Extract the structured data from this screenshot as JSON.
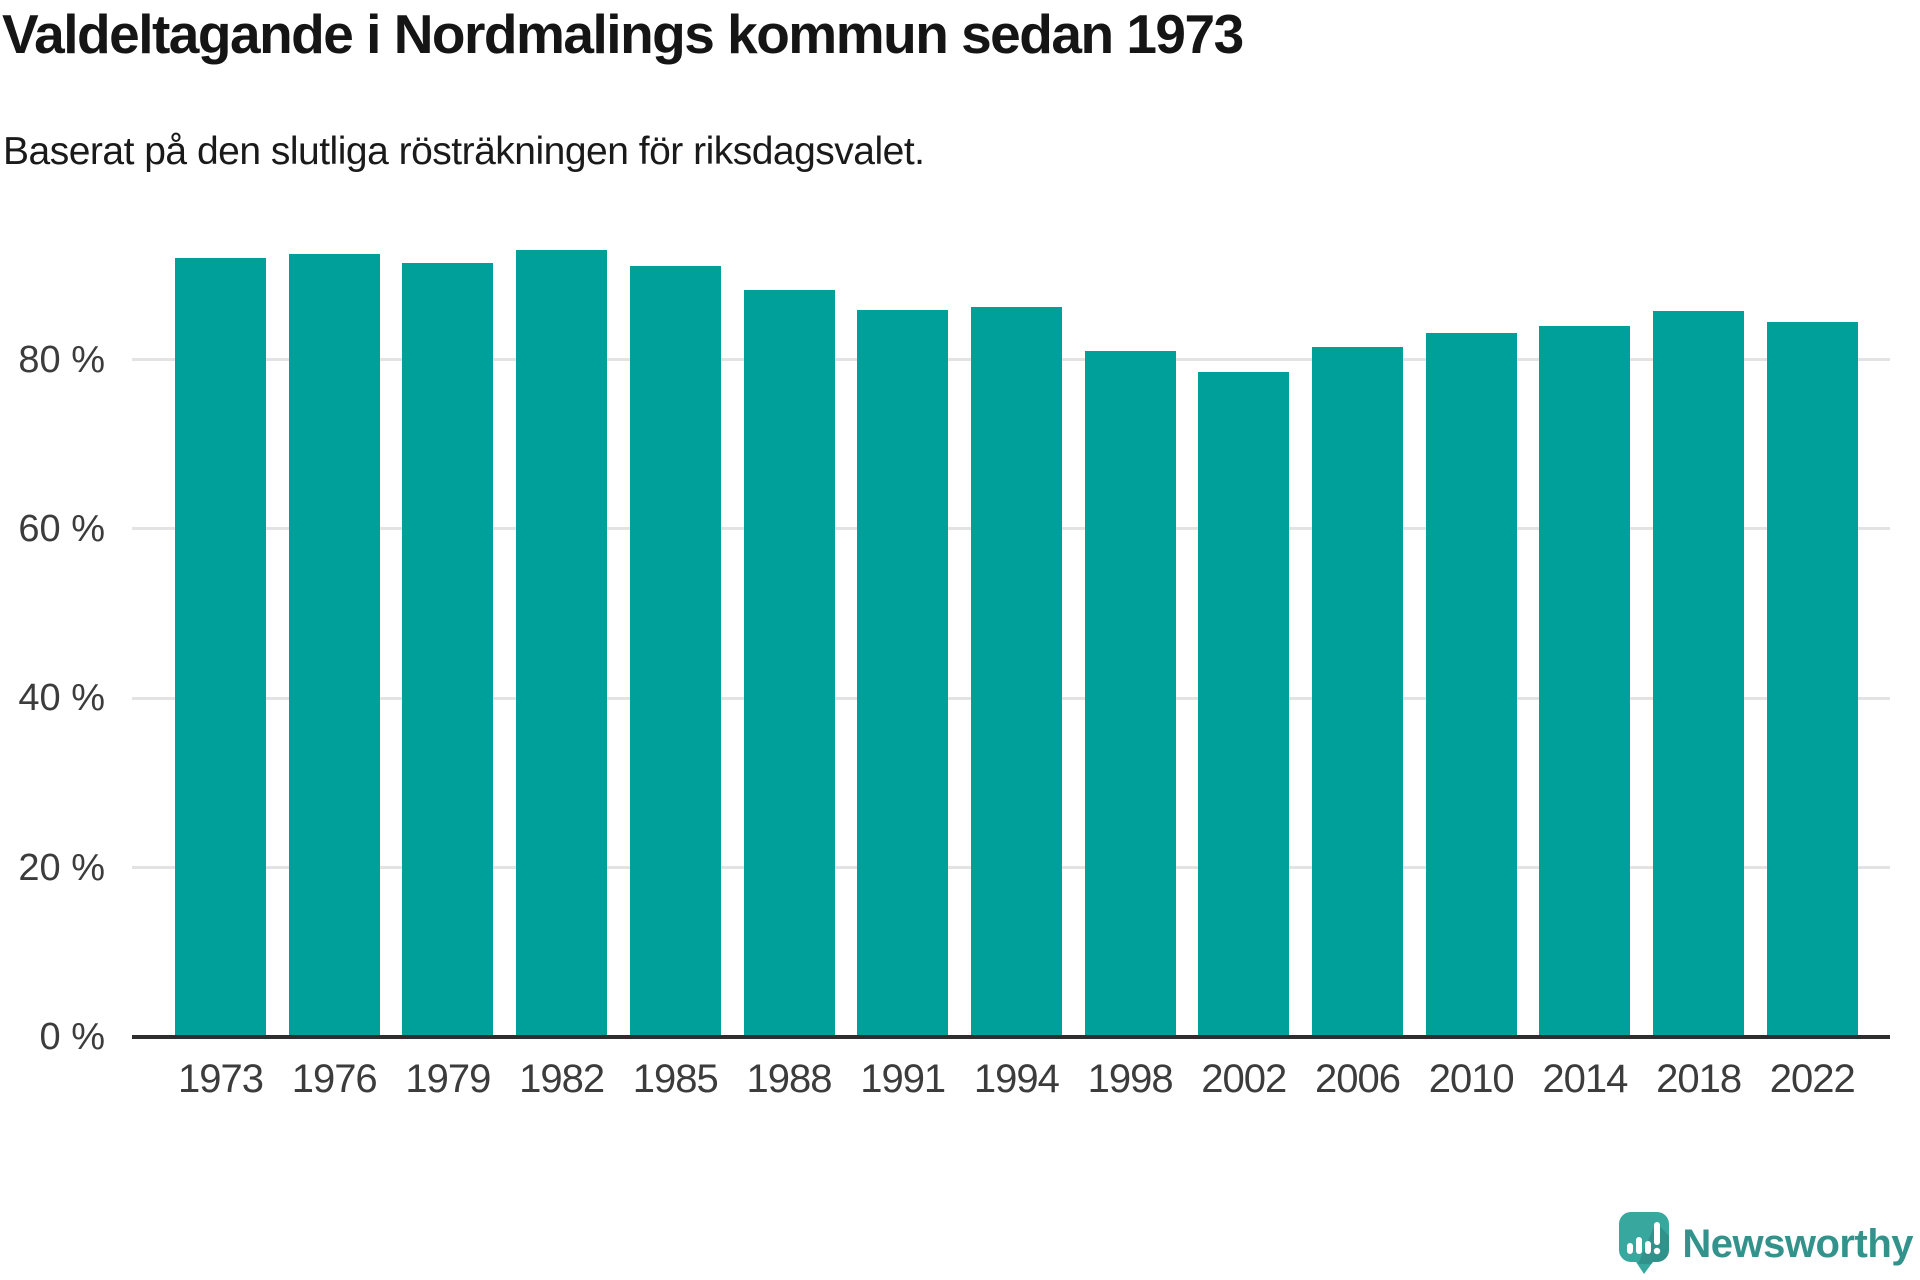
{
  "header": {
    "title": "Valdeltagande i Nordmalings kommun sedan 1973",
    "subtitle": "Baserat på den slutliga rösträkningen för riksdagsvalet."
  },
  "chart_data": {
    "type": "bar",
    "title": "Valdeltagande i Nordmalings kommun sedan 1973",
    "subtitle": "Baserat på den slutliga rösträkningen för riksdagsvalet.",
    "categories": [
      "1973",
      "1976",
      "1979",
      "1982",
      "1985",
      "1988",
      "1991",
      "1994",
      "1998",
      "2002",
      "2006",
      "2010",
      "2014",
      "2018",
      "2022"
    ],
    "values": [
      92.0,
      92.5,
      91.4,
      92.9,
      91.1,
      88.2,
      85.9,
      86.2,
      81.0,
      78.5,
      81.5,
      83.1,
      84.0,
      85.7,
      84.4
    ],
    "unit": "%",
    "xlabel": "",
    "ylabel": "",
    "ylim": [
      0,
      100
    ],
    "yticks": [
      0,
      20,
      40,
      60,
      80
    ],
    "ytick_labels": [
      "0 %",
      "20 %",
      "40 %",
      "60 %",
      "80 %"
    ],
    "grid": true,
    "legend": "none",
    "bar_color": "#00a09a"
  },
  "footer": {
    "brand": "Newsworthy"
  },
  "colors": {
    "accent": "#00a09a",
    "grid": "#e3e3e3",
    "axis": "#2e2e2e",
    "text": "#3c3c3c",
    "title": "#151515",
    "brand_text": "#33938c",
    "logo_bubble": "#38a89f"
  }
}
